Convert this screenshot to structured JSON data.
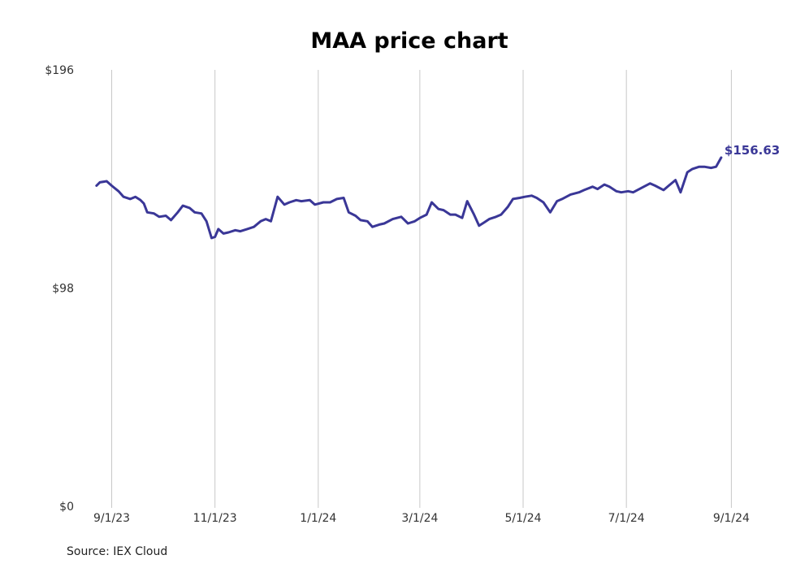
{
  "chart_data": {
    "type": "line",
    "title": "MAA price chart",
    "xlabel": "",
    "ylabel": "",
    "source": "Source: IEX Cloud",
    "ylim": [
      0,
      196
    ],
    "xlim": [
      "2023-08-14",
      "2024-09-08"
    ],
    "yticks": [
      {
        "value": 0,
        "label": "$0"
      },
      {
        "value": 98,
        "label": "$98"
      },
      {
        "value": 196,
        "label": "$196"
      }
    ],
    "xticks": [
      {
        "date": "2023-09-01",
        "label": "9/1/23"
      },
      {
        "date": "2023-11-01",
        "label": "11/1/23"
      },
      {
        "date": "2024-01-01",
        "label": "1/1/24"
      },
      {
        "date": "2024-03-01",
        "label": "3/1/24"
      },
      {
        "date": "2024-05-01",
        "label": "5/1/24"
      },
      {
        "date": "2024-07-01",
        "label": "7/1/24"
      },
      {
        "date": "2024-09-01",
        "label": "9/1/24"
      }
    ],
    "grid": {
      "vertical": true,
      "horizontal": false
    },
    "line_color": "#3a3797",
    "end_label": "$156.63",
    "series": [
      {
        "name": "MAA",
        "x": [
          "2023-08-23",
          "2023-08-25",
          "2023-08-29",
          "2023-09-01",
          "2023-09-05",
          "2023-09-08",
          "2023-09-12",
          "2023-09-15",
          "2023-09-18",
          "2023-09-20",
          "2023-09-22",
          "2023-09-26",
          "2023-09-29",
          "2023-10-03",
          "2023-10-06",
          "2023-10-10",
          "2023-10-13",
          "2023-10-17",
          "2023-10-20",
          "2023-10-24",
          "2023-10-27",
          "2023-10-30",
          "2023-11-01",
          "2023-11-03",
          "2023-11-06",
          "2023-11-09",
          "2023-11-13",
          "2023-11-16",
          "2023-11-20",
          "2023-11-24",
          "2023-11-28",
          "2023-12-01",
          "2023-12-04",
          "2023-12-08",
          "2023-12-12",
          "2023-12-15",
          "2023-12-19",
          "2023-12-22",
          "2023-12-27",
          "2023-12-30",
          "2024-01-04",
          "2024-01-08",
          "2024-01-12",
          "2024-01-16",
          "2024-01-19",
          "2024-01-23",
          "2024-01-26",
          "2024-01-30",
          "2024-02-02",
          "2024-02-06",
          "2024-02-09",
          "2024-02-14",
          "2024-02-19",
          "2024-02-23",
          "2024-02-27",
          "2024-03-01",
          "2024-03-05",
          "2024-03-08",
          "2024-03-12",
          "2024-03-15",
          "2024-03-19",
          "2024-03-22",
          "2024-03-26",
          "2024-03-29",
          "2024-04-02",
          "2024-04-05",
          "2024-04-08",
          "2024-04-11",
          "2024-04-15",
          "2024-04-18",
          "2024-04-22",
          "2024-04-25",
          "2024-04-29",
          "2024-05-02",
          "2024-05-06",
          "2024-05-09",
          "2024-05-13",
          "2024-05-17",
          "2024-05-21",
          "2024-05-24",
          "2024-05-29",
          "2024-06-03",
          "2024-06-06",
          "2024-06-11",
          "2024-06-14",
          "2024-06-18",
          "2024-06-21",
          "2024-06-25",
          "2024-06-28",
          "2024-07-02",
          "2024-07-05",
          "2024-07-10",
          "2024-07-15",
          "2024-07-18",
          "2024-07-23",
          "2024-07-26",
          "2024-07-30",
          "2024-08-02",
          "2024-08-06",
          "2024-08-09",
          "2024-08-13",
          "2024-08-16",
          "2024-08-20",
          "2024-08-23",
          "2024-08-26"
        ],
        "y": [
          144.0,
          145.5,
          146.0,
          144.0,
          141.5,
          139.0,
          138.0,
          139.0,
          137.5,
          136.0,
          132.0,
          131.5,
          130.0,
          130.5,
          128.5,
          132.0,
          135.0,
          134.0,
          132.0,
          131.5,
          128.0,
          120.5,
          121.0,
          124.5,
          122.5,
          123.0,
          124.0,
          123.5,
          124.5,
          125.5,
          128.0,
          129.0,
          128.0,
          139.0,
          135.5,
          136.5,
          137.5,
          137.0,
          137.5,
          135.5,
          136.5,
          136.5,
          138.0,
          138.5,
          132.0,
          130.5,
          128.5,
          128.0,
          125.5,
          126.5,
          127.0,
          129.0,
          130.0,
          127.0,
          128.0,
          129.5,
          131.0,
          136.5,
          133.5,
          133.0,
          131.0,
          131.0,
          129.5,
          137.0,
          131.0,
          126.0,
          127.5,
          129.0,
          130.0,
          131.0,
          134.5,
          138.0,
          138.5,
          139.0,
          139.5,
          138.5,
          136.5,
          132.0,
          137.0,
          138.0,
          140.0,
          141.0,
          142.0,
          143.5,
          142.5,
          144.5,
          143.5,
          141.5,
          141.0,
          141.5,
          141.0,
          143.0,
          145.0,
          144.0,
          142.0,
          144.0,
          146.5,
          141.0,
          150.0,
          151.5,
          152.5,
          152.5,
          152.0,
          152.5,
          156.63
        ]
      }
    ]
  }
}
